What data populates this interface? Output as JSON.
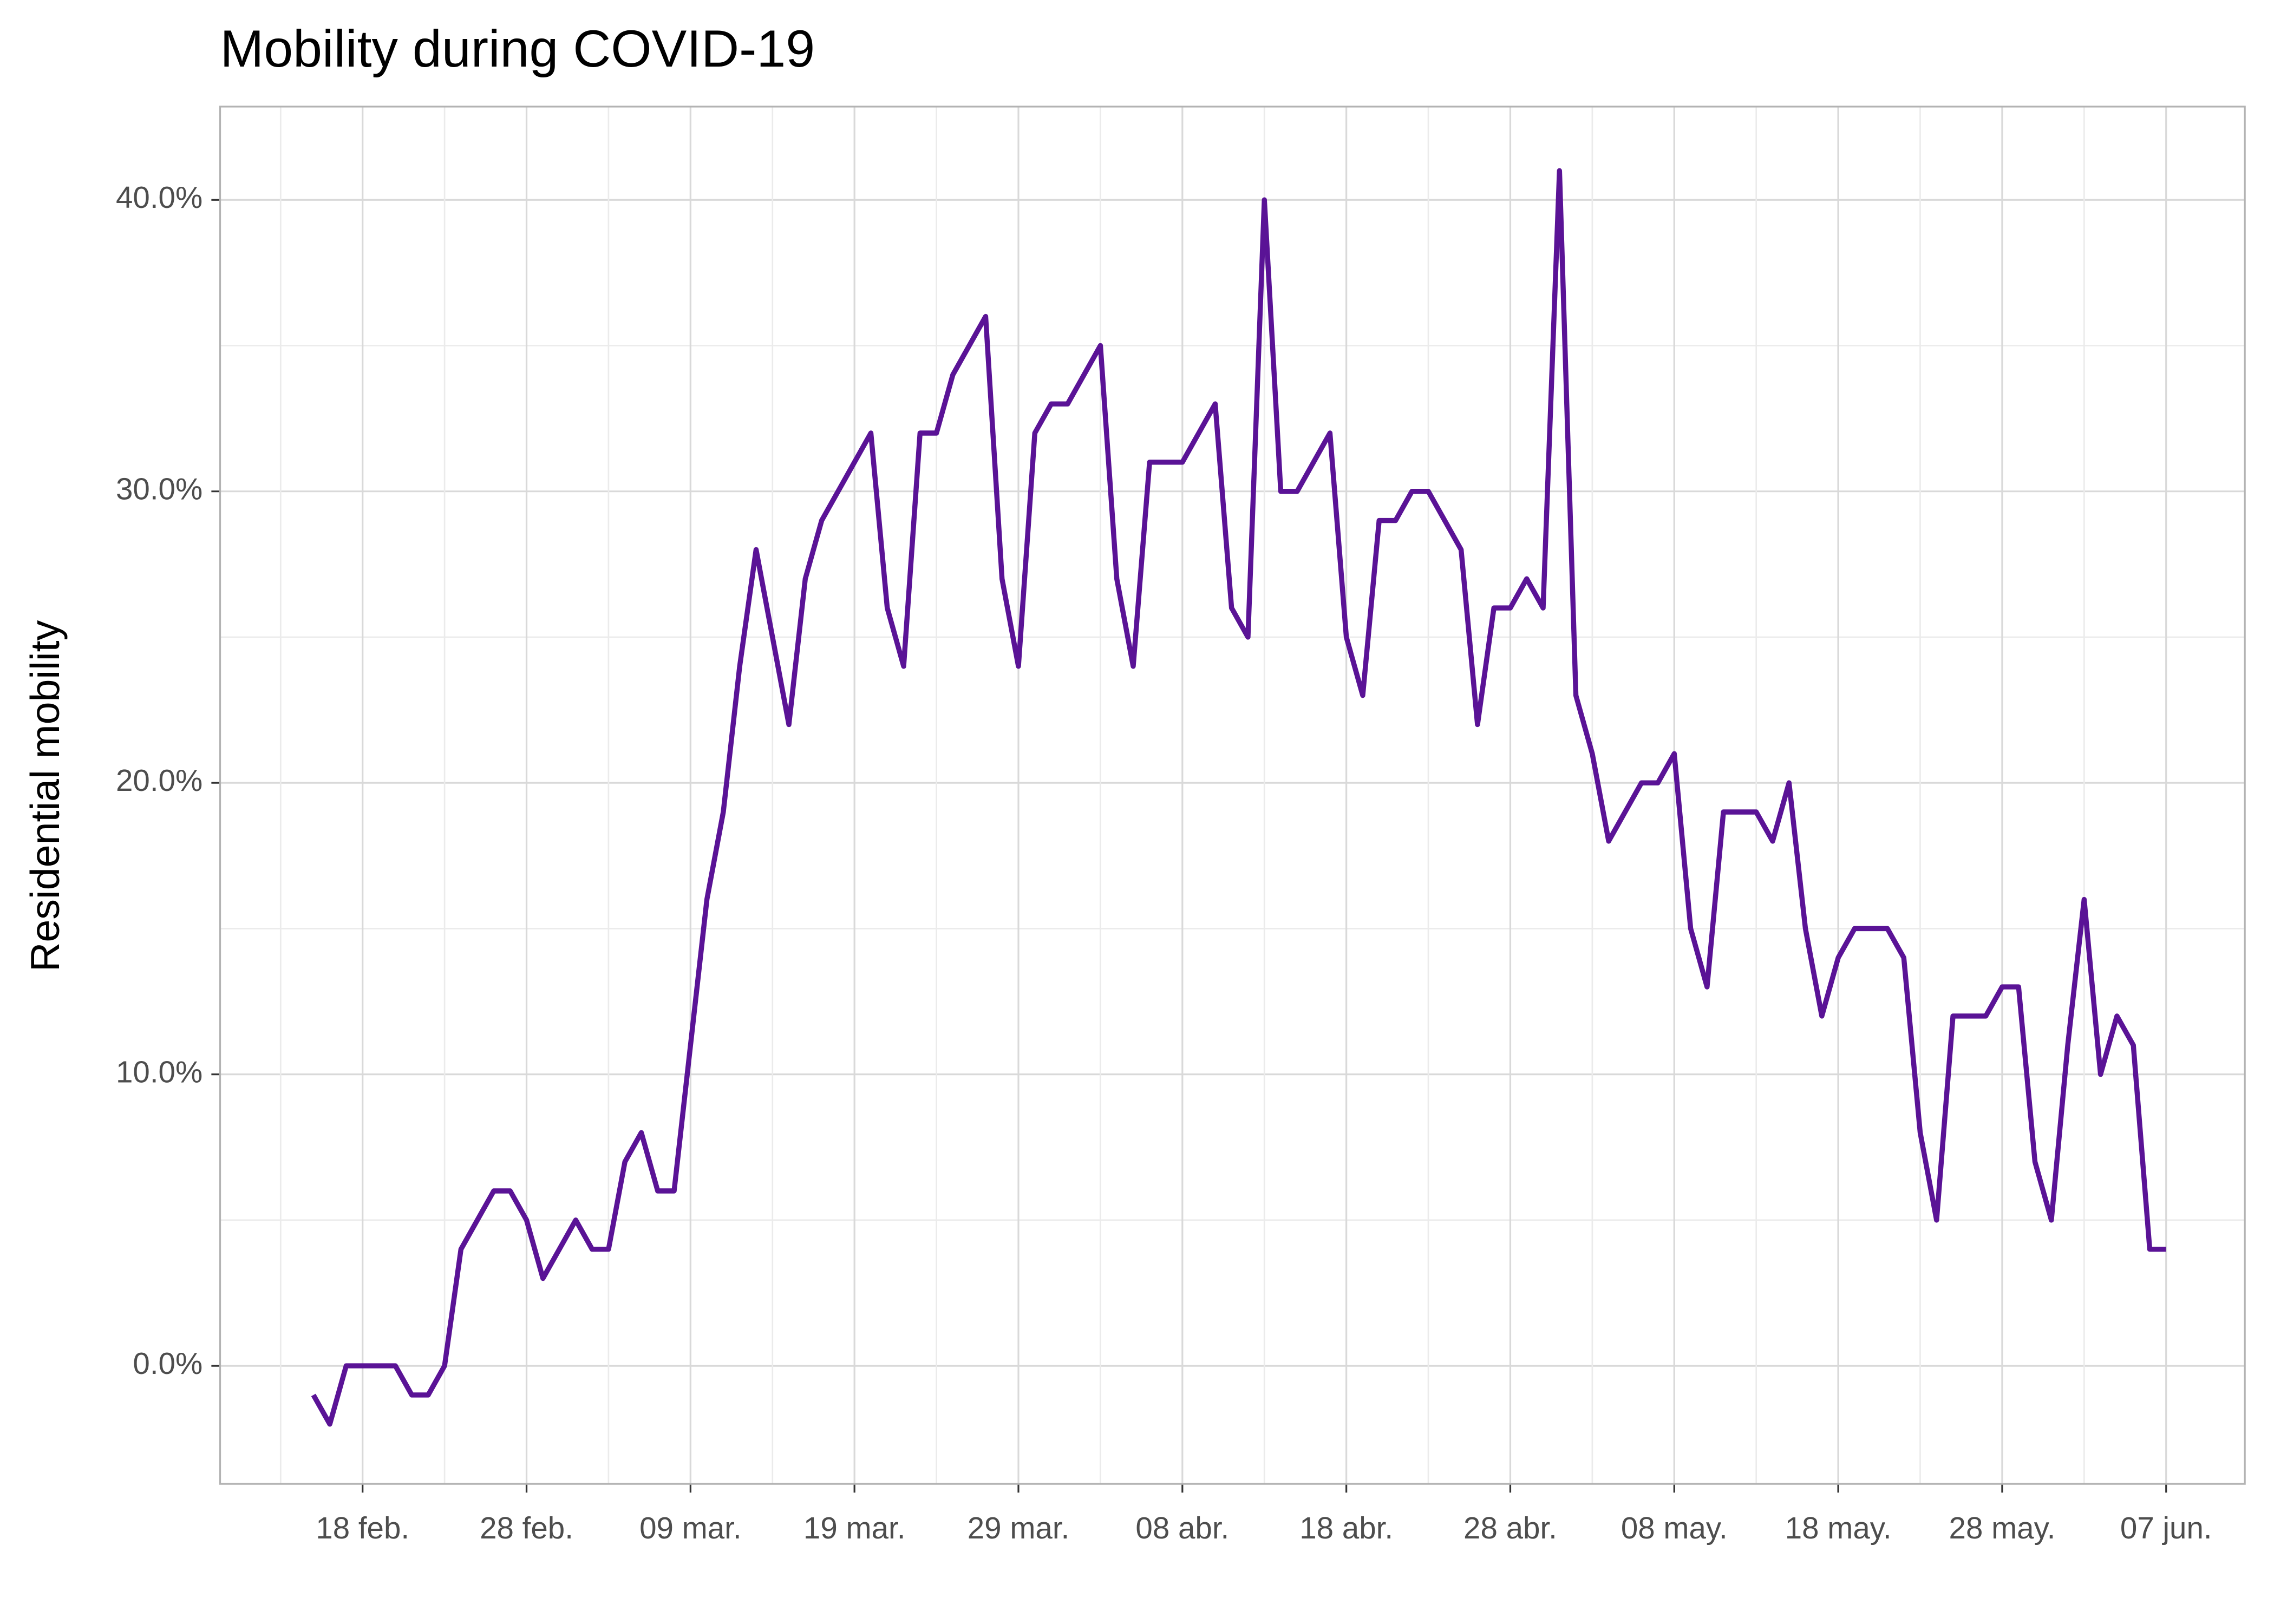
{
  "chart_data": {
    "type": "line",
    "title": "Mobility during COVID-19",
    "y_label": "Residential mobility",
    "x": [
      "15 feb.",
      "16 feb.",
      "17 feb.",
      "18 feb.",
      "19 feb.",
      "20 feb.",
      "21 feb.",
      "22 feb.",
      "23 feb.",
      "24 feb.",
      "25 feb.",
      "26 feb.",
      "27 feb.",
      "28 feb.",
      "29 feb.",
      "01 mar.",
      "02 mar.",
      "03 mar.",
      "04 mar.",
      "05 mar.",
      "06 mar.",
      "07 mar.",
      "08 mar.",
      "09 mar.",
      "10 mar.",
      "11 mar.",
      "12 mar.",
      "13 mar.",
      "14 mar.",
      "15 mar.",
      "16 mar.",
      "17 mar.",
      "18 mar.",
      "19 mar.",
      "20 mar.",
      "21 mar.",
      "22 mar.",
      "23 mar.",
      "24 mar.",
      "25 mar.",
      "26 mar.",
      "27 mar.",
      "28 mar.",
      "29 mar.",
      "30 mar.",
      "31 mar.",
      "01 abr.",
      "02 abr.",
      "03 abr.",
      "04 abr.",
      "05 abr.",
      "06 abr.",
      "07 abr.",
      "08 abr.",
      "09 abr.",
      "10 abr.",
      "11 abr.",
      "12 abr.",
      "13 abr.",
      "14 abr.",
      "15 abr.",
      "16 abr.",
      "17 abr.",
      "18 abr.",
      "19 abr.",
      "20 abr.",
      "21 abr.",
      "22 abr.",
      "23 abr.",
      "24 abr.",
      "25 abr.",
      "26 abr.",
      "27 abr.",
      "28 abr.",
      "29 abr.",
      "30 abr.",
      "01 may.",
      "02 may.",
      "03 may.",
      "04 may.",
      "05 may.",
      "06 may.",
      "07 may.",
      "08 may.",
      "09 may.",
      "10 may.",
      "11 may.",
      "12 may.",
      "13 may.",
      "14 may.",
      "15 may.",
      "16 may.",
      "17 may.",
      "18 may.",
      "19 may.",
      "20 may.",
      "21 may.",
      "22 may.",
      "23 may.",
      "24 may.",
      "25 may.",
      "26 may.",
      "27 may.",
      "28 may.",
      "29 may.",
      "30 may.",
      "31 may.",
      "01 jun.",
      "02 jun.",
      "03 jun.",
      "04 jun.",
      "05 jun.",
      "06 jun.",
      "07 jun."
    ],
    "series": [
      {
        "name": "Residential mobility",
        "color": "#5a1396",
        "values": [
          -1,
          -2,
          0,
          0,
          0,
          0,
          -1,
          -1,
          0,
          4,
          5,
          6,
          6,
          5,
          3,
          4,
          5,
          4,
          4,
          7,
          8,
          6,
          6,
          11,
          16,
          19,
          24,
          28,
          25,
          22,
          27,
          29,
          30,
          31,
          32,
          26,
          24,
          32,
          32,
          34,
          35,
          36,
          27,
          24,
          32,
          33,
          33,
          34,
          35,
          27,
          24,
          31,
          31,
          31,
          32,
          33,
          26,
          25,
          40,
          30,
          30,
          31,
          32,
          25,
          23,
          29,
          29,
          30,
          30,
          29,
          28,
          22,
          26,
          26,
          27,
          26,
          41,
          23,
          21,
          18,
          19,
          20,
          20,
          21,
          15,
          13,
          19,
          19,
          19,
          18,
          20,
          15,
          12,
          14,
          15,
          15,
          15,
          14,
          8,
          5,
          12,
          12,
          12,
          13,
          13,
          7,
          5,
          11,
          16,
          10,
          12,
          11,
          4,
          4
        ]
      }
    ],
    "xticks": [
      "18 feb.",
      "28 feb.",
      "09 mar.",
      "19 mar.",
      "29 mar.",
      "08 abr.",
      "18 abr.",
      "28 abr.",
      "08 may.",
      "18 may.",
      "28 may.",
      "07 jun."
    ],
    "ylim": [
      -4.05,
      43.2
    ],
    "yticks": [
      {
        "value": 0,
        "label": "0.0%"
      },
      {
        "value": 10,
        "label": "10.0%"
      },
      {
        "value": 20,
        "label": "20.0%"
      },
      {
        "value": 30,
        "label": "30.0%"
      },
      {
        "value": 40,
        "label": "40.0%"
      }
    ],
    "grid": true
  }
}
